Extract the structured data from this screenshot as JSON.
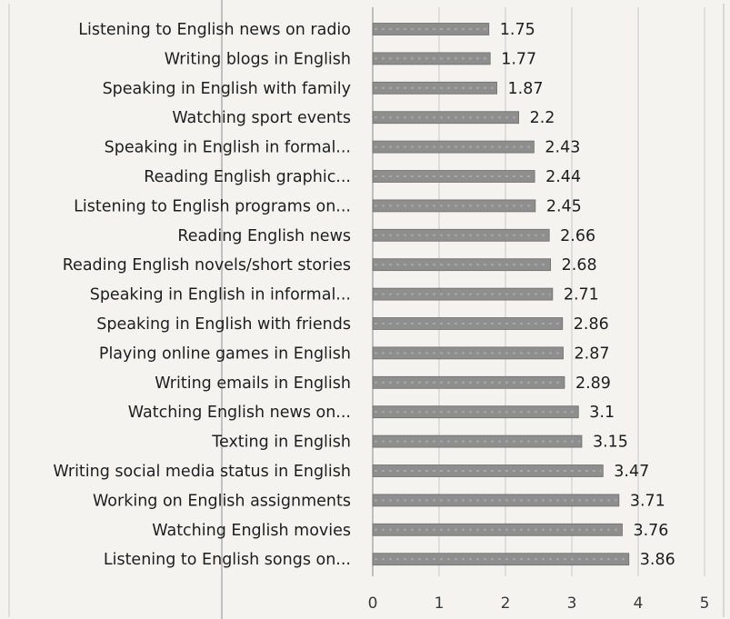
{
  "chart_data": {
    "type": "bar",
    "orientation": "horizontal",
    "categories": [
      "Listening to English news on radio",
      "Writing blogs in English",
      "Speaking in English with family",
      "Watching sport events",
      "Speaking in English in formal...",
      "Reading English graphic...",
      "Listening to English programs on...",
      "Reading English news",
      "Reading English novels/short stories",
      "Speaking in English in informal...",
      "Speaking in English with friends",
      "Playing online games in English",
      "Writing emails in English",
      "Watching English news on...",
      "Texting in English",
      "Writing social media status in English",
      "Working on English assignments",
      "Watching English movies",
      "Listening to English songs on..."
    ],
    "values": [
      1.75,
      1.77,
      1.87,
      2.2,
      2.43,
      2.44,
      2.45,
      2.66,
      2.68,
      2.71,
      2.86,
      2.87,
      2.89,
      3.1,
      3.15,
      3.47,
      3.71,
      3.76,
      3.86
    ],
    "value_labels": [
      "1.75",
      "1.77",
      "1.87",
      "2.2",
      "2.43",
      "2.44",
      "2.45",
      "2.66",
      "2.68",
      "2.71",
      "2.86",
      "2.87",
      "2.89",
      "3.1",
      "3.15",
      "3.47",
      "3.71",
      "3.76",
      "3.86"
    ],
    "x_ticks": [
      "0",
      "1",
      "2",
      "3",
      "4",
      "5"
    ],
    "xlim": [
      0,
      5
    ],
    "grid": true,
    "bar_color": "#8e8e8e",
    "grid_color": "#c8c8c8",
    "background_color": "#f4f3ef",
    "title": "",
    "xlabel": "",
    "ylabel": ""
  }
}
